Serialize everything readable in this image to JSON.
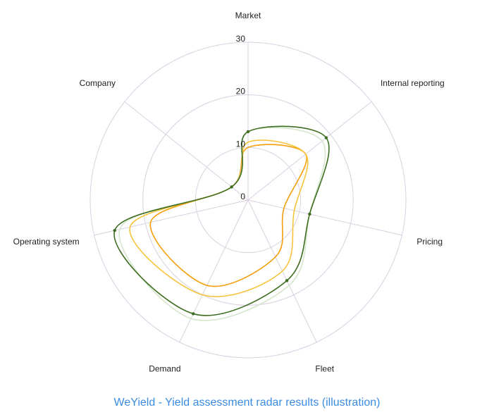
{
  "caption": "WeYield - Yield assessment radar results (illustration)",
  "colors": {
    "grid": "#d9cfe0",
    "spoke": "#d9cfe0",
    "label": "#1f1f1f",
    "caption": "#3b8be0"
  },
  "chart_data": {
    "type": "radar",
    "title": "",
    "axes": [
      "Market",
      "Internal reporting",
      "Pricing",
      "Fleet",
      "Demand",
      "Operating system",
      "Company"
    ],
    "rlim": [
      0,
      30
    ],
    "ticks": [
      "0",
      "10",
      "20",
      "30"
    ],
    "tick_values": [
      0,
      10,
      20,
      30
    ],
    "grid": true,
    "series": [
      {
        "values": [
          13,
          19,
          12,
          17,
          24,
          26,
          4
        ],
        "color": "#3d6e1f",
        "width": 1.6,
        "markers": true
      },
      {
        "values": [
          13,
          18,
          12,
          18,
          25,
          25,
          4
        ],
        "color": "#d6e6cc",
        "width": 1.6,
        "markers": false
      },
      {
        "values": [
          11,
          14,
          9,
          15,
          20,
          23,
          4
        ],
        "color": "#f7c33d",
        "width": 1.6,
        "markers": false
      },
      {
        "values": [
          10,
          14,
          7,
          12,
          18,
          19,
          4
        ],
        "color": "#f59e0b",
        "width": 1.6,
        "markers": false
      }
    ]
  }
}
